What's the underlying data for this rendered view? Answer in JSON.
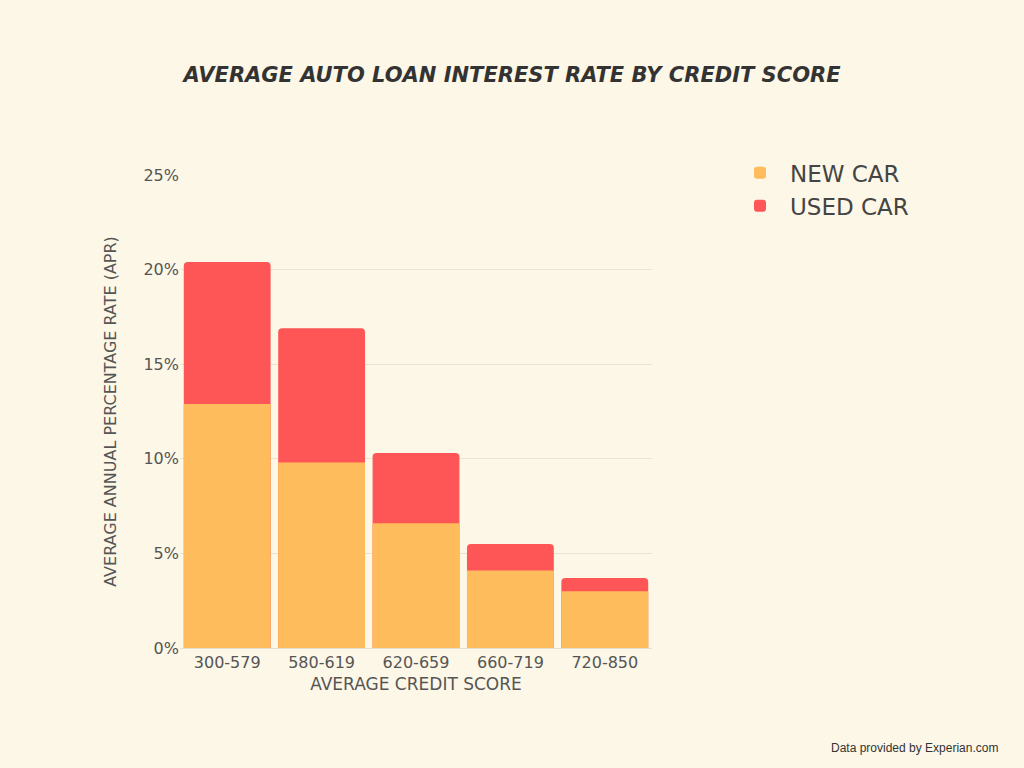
{
  "chart_data": {
    "type": "bar",
    "title": "AVERAGE AUTO LOAN INTEREST RATE BY CREDIT SCORE",
    "x_label": "AVERAGE CREDIT SCORE",
    "y_label": "AVERAGE ANNUAL PERCENTAGE RATE (APR)",
    "categories": [
      "300-579",
      "580-619",
      "620-659",
      "660-719",
      "720-850"
    ],
    "series": [
      {
        "name": "NEW CAR",
        "color": "#febc5c",
        "values": [
          12.9,
          9.8,
          6.6,
          4.1,
          3.0
        ]
      },
      {
        "name": "USED CAR",
        "color": "#fe5656",
        "values": [
          20.4,
          16.9,
          10.3,
          5.5,
          3.7
        ]
      }
    ],
    "ylim": [
      0,
      25
    ],
    "yticks": [
      {
        "value": 0,
        "label": "0%"
      },
      {
        "value": 5,
        "label": "5%"
      },
      {
        "value": 10,
        "label": "10%"
      },
      {
        "value": 15,
        "label": "15%"
      },
      {
        "value": 20,
        "label": "20%"
      },
      {
        "value": 25,
        "label": "25%"
      }
    ],
    "grid": true,
    "legend": "right",
    "annotations": [
      "Data provided by Experian.com"
    ]
  }
}
